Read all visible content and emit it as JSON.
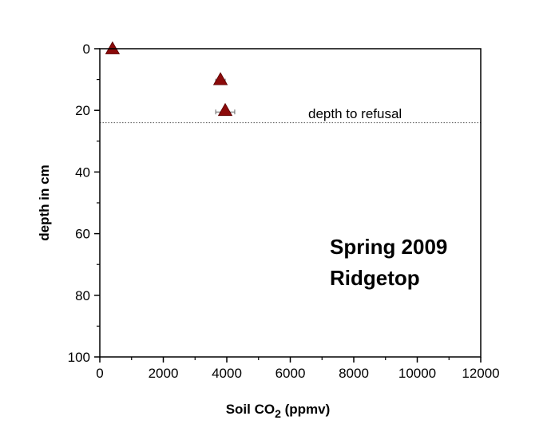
{
  "chart_data": {
    "type": "scatter",
    "title": "",
    "xlabel": {
      "main": "Soil CO",
      "sub": "2",
      "suffix": " (ppmv)"
    },
    "ylabel": "depth in cm",
    "xlim": [
      0,
      12000
    ],
    "ylim": [
      0,
      100
    ],
    "y_inverted": true,
    "grid": false,
    "x_ticks": [
      0,
      2000,
      4000,
      6000,
      8000,
      10000,
      12000
    ],
    "y_ticks": [
      0,
      20,
      40,
      60,
      80,
      100
    ],
    "series": [
      {
        "marker": "triangle",
        "color": "#8b0a0a",
        "points": [
          {
            "x": 400,
            "y": 0,
            "xerr": 100
          },
          {
            "x": 3800,
            "y": 10,
            "xerr": 150
          },
          {
            "x": 3950,
            "y": 20,
            "xerr": 300
          }
        ]
      }
    ],
    "reference_line": {
      "y": 24,
      "style": "dotted",
      "label": "depth to refusal"
    },
    "annotations": [
      "Spring 2009",
      "Ridgetop"
    ]
  }
}
